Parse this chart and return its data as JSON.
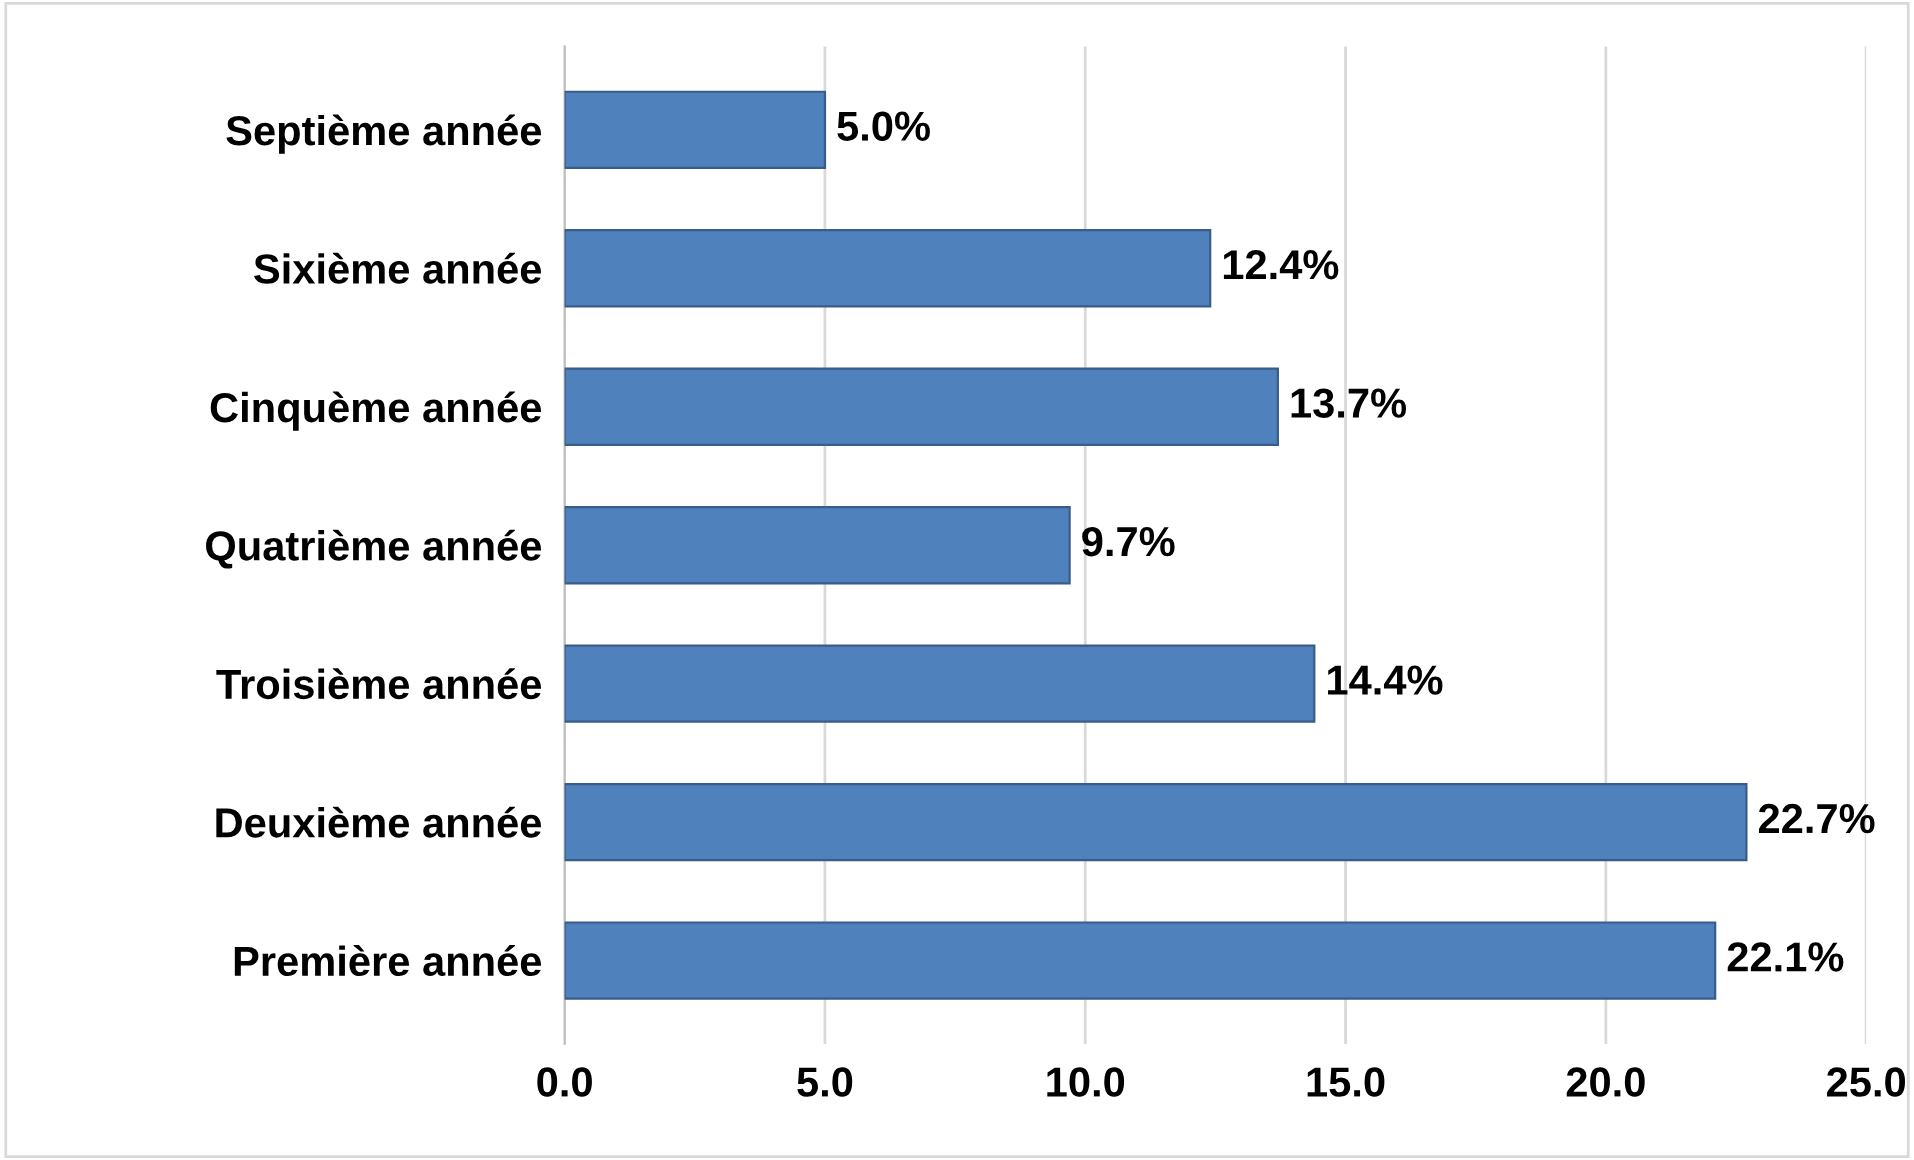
{
  "chart_data": {
    "type": "bar",
    "orientation": "horizontal",
    "categories": [
      "Septième année",
      "Sixième année",
      "Cinquème année",
      "Quatrième année",
      "Troisième année",
      "Deuxième année",
      "Première année"
    ],
    "values": [
      5.0,
      12.4,
      13.7,
      9.7,
      14.4,
      22.7,
      22.1
    ],
    "value_labels": [
      "5.0%",
      "12.4%",
      "13.7%",
      "9.7%",
      "14.4%",
      "22.7%",
      "22.1%"
    ],
    "color": "#4f81bd",
    "xlim": [
      0,
      25
    ],
    "xticks": [
      {
        "value": 0,
        "label": "0.0"
      },
      {
        "value": 5,
        "label": "5.0"
      },
      {
        "value": 10,
        "label": "10.0"
      },
      {
        "value": 15,
        "label": "15.0"
      },
      {
        "value": 20,
        "label": "20.0"
      },
      {
        "value": 25,
        "label": "25.0"
      }
    ],
    "grid": "x",
    "legend": false
  }
}
